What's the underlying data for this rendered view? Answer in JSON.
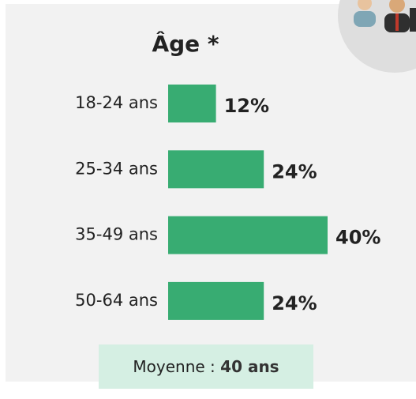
{
  "chart_data": {
    "type": "bar",
    "orientation": "horizontal",
    "title": "Âge *",
    "categories": [
      "18-24 ans",
      "25-34 ans",
      "35-49 ans",
      "50-64 ans"
    ],
    "values": [
      12,
      24,
      40,
      24
    ],
    "value_labels": [
      "12%",
      "24%",
      "40%",
      "24%"
    ],
    "color": "#38ac72",
    "average_label": "Moyenne :",
    "average_value": "40 ans"
  }
}
